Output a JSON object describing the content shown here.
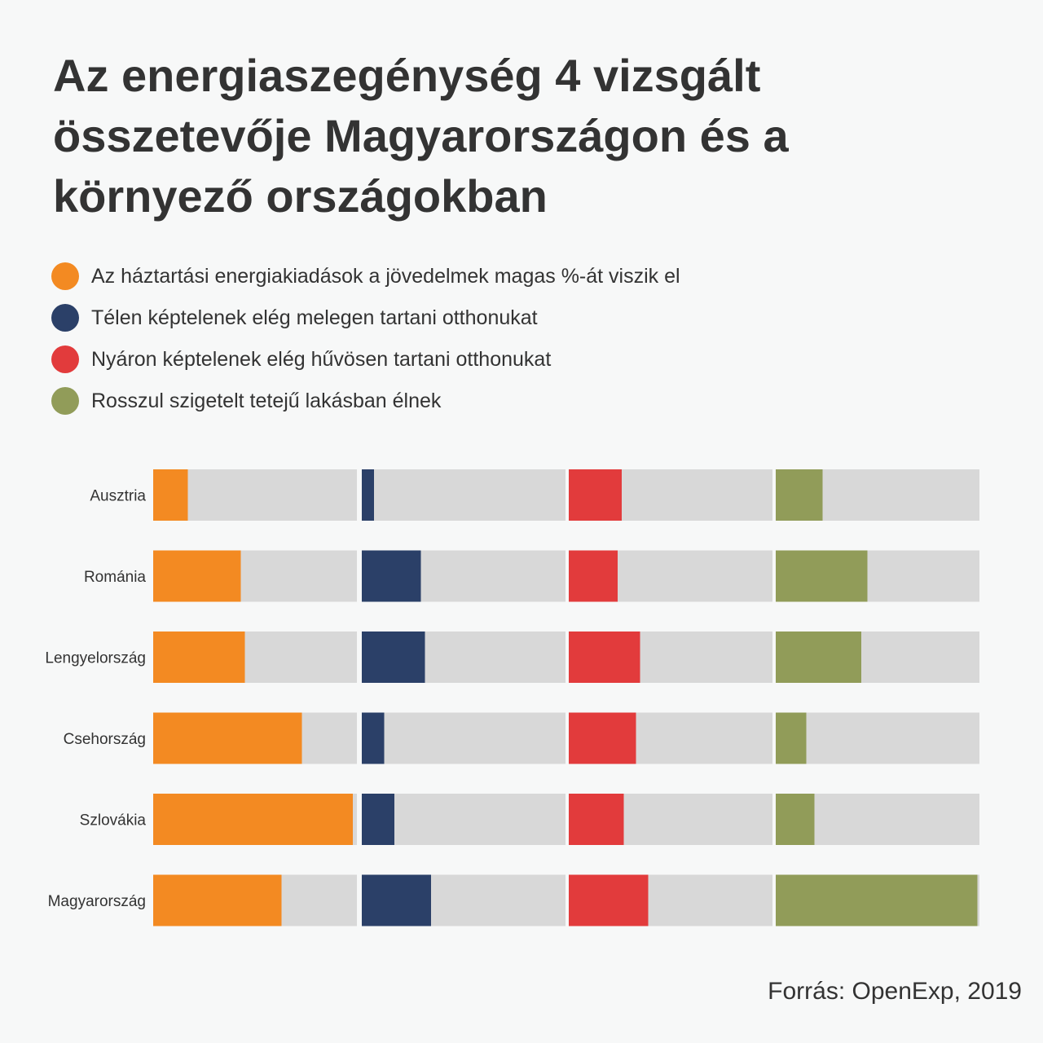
{
  "title": "Az energiaszegénység 4 vizsgált összetevője Magyarországon és a környező országokban",
  "legend": [
    {
      "label": "Az háztartási energiakiadások a jövedelmek magas %-át viszik el",
      "color": "#f38a22"
    },
    {
      "label": "Télen képtelenek elég melegen tartani otthonukat",
      "color": "#2b4068"
    },
    {
      "label": "Nyáron képtelenek elég hűvösen tartani otthonukat",
      "color": "#e23b3c"
    },
    {
      "label": "Rosszul szigetelt tetejű lakásban élnek",
      "color": "#919c59"
    }
  ],
  "source": "Forrás: OpenExp, 2019",
  "chart_data": {
    "type": "bar",
    "categories": [
      "Ausztria",
      "Románia",
      "Lengyelország",
      "Csehország",
      "Szlovákia",
      "Magyarország"
    ],
    "series": [
      {
        "name": "Az háztartási energiakiadások a jövedelmek magas %-át viszik el",
        "color": "#f38a22",
        "values": [
          17,
          43,
          45,
          73,
          98,
          63
        ]
      },
      {
        "name": "Télen képtelenek elég melegen tartani otthonukat",
        "color": "#2b4068",
        "values": [
          6,
          29,
          31,
          11,
          16,
          34
        ]
      },
      {
        "name": "Nyáron képtelenek elég hűvösen tartani otthonukat",
        "color": "#e23b3c",
        "values": [
          26,
          24,
          35,
          33,
          27,
          39
        ]
      },
      {
        "name": "Rosszul szigetelt tetejű lakásban élnek",
        "color": "#919c59",
        "values": [
          23,
          45,
          42,
          15,
          19,
          99
        ]
      }
    ],
    "ylim": [
      0,
      100
    ],
    "background_color": "#d8d8d8",
    "grid": false,
    "legend_position": "top-left"
  }
}
